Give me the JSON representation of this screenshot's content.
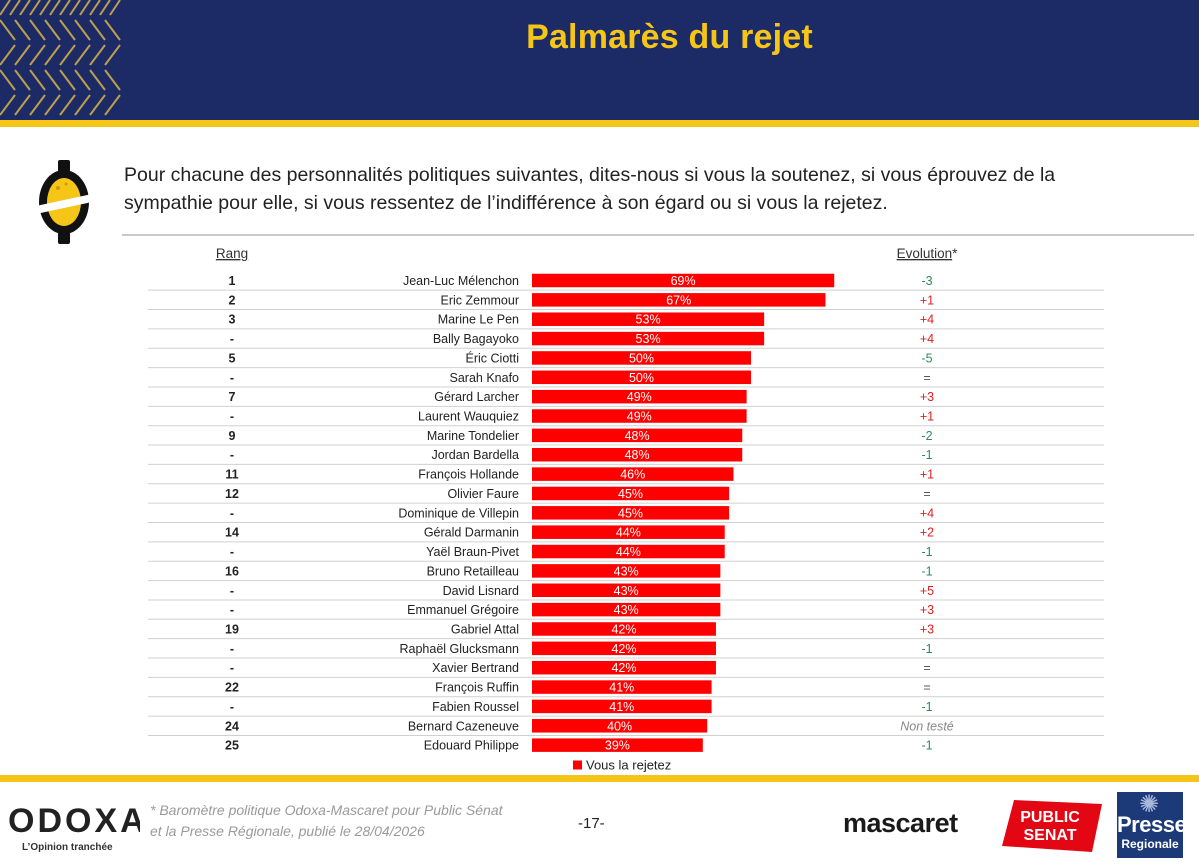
{
  "header": {
    "title": "Palmarès du rejet"
  },
  "question": "Pour chacune des personnalités politiques suivantes, dites-nous si vous la soutenez, si vous éprouvez de la sympathie pour elle, si vous ressentez de l’indifférence à son égard ou si vous la rejetez.",
  "colors": {
    "bar": "#ff0000",
    "header_bg": "#1c2a66",
    "accent": "#f5c518",
    "evolution_up": "#e02020",
    "evolution_down": "#2e8b57",
    "evolution_neutral": "#555555",
    "evolution_untested": "#888888"
  },
  "chart_data": {
    "type": "bar",
    "orientation": "horizontal",
    "rank_header": "Rang",
    "evolution_header": "Evolution",
    "evolution_header_mark": "*",
    "series": [
      {
        "name": "Vous la rejetez"
      }
    ],
    "xlim": [
      0,
      100
    ],
    "unit": "%",
    "grid": false,
    "legend_position": "bottom",
    "rows": [
      {
        "rank": "1",
        "name": "Jean-Luc Mélenchon",
        "value": 69,
        "label": "69%",
        "evolution": "-3"
      },
      {
        "rank": "2",
        "name": "Eric Zemmour",
        "value": 67,
        "label": "67%",
        "evolution": "+1"
      },
      {
        "rank": "3",
        "name": "Marine Le Pen",
        "value": 53,
        "label": "53%",
        "evolution": "+4"
      },
      {
        "rank": "-",
        "name": "Bally Bagayoko",
        "value": 53,
        "label": "53%",
        "evolution": "+4"
      },
      {
        "rank": "5",
        "name": "Éric Ciotti",
        "value": 50,
        "label": "50%",
        "evolution": "-5"
      },
      {
        "rank": "-",
        "name": "Sarah Knafo",
        "value": 50,
        "label": "50%",
        "evolution": "="
      },
      {
        "rank": "7",
        "name": "Gérard Larcher",
        "value": 49,
        "label": "49%",
        "evolution": "+3"
      },
      {
        "rank": "-",
        "name": "Laurent Wauquiez",
        "value": 49,
        "label": "49%",
        "evolution": "+1"
      },
      {
        "rank": "9",
        "name": "Marine Tondelier",
        "value": 48,
        "label": "48%",
        "evolution": "-2"
      },
      {
        "rank": "-",
        "name": "Jordan Bardella",
        "value": 48,
        "label": "48%",
        "evolution": "-1"
      },
      {
        "rank": "11",
        "name": "François Hollande",
        "value": 46,
        "label": "46%",
        "evolution": "+1"
      },
      {
        "rank": "12",
        "name": "Olivier Faure",
        "value": 45,
        "label": "45%",
        "evolution": "="
      },
      {
        "rank": "-",
        "name": "Dominique de Villepin",
        "value": 45,
        "label": "45%",
        "evolution": "+4"
      },
      {
        "rank": "14",
        "name": "Gérald Darmanin",
        "value": 44,
        "label": "44%",
        "evolution": "+2"
      },
      {
        "rank": "-",
        "name": "Yaël Braun-Pivet",
        "value": 44,
        "label": "44%",
        "evolution": "-1"
      },
      {
        "rank": "16",
        "name": "Bruno Retailleau",
        "value": 43,
        "label": "43%",
        "evolution": "-1"
      },
      {
        "rank": "-",
        "name": "David Lisnard",
        "value": 43,
        "label": "43%",
        "evolution": "+5"
      },
      {
        "rank": "-",
        "name": "Emmanuel Grégoire",
        "value": 43,
        "label": "43%",
        "evolution": "+3"
      },
      {
        "rank": "19",
        "name": "Gabriel Attal",
        "value": 42,
        "label": "42%",
        "evolution": "+3"
      },
      {
        "rank": "-",
        "name": "Raphaël Glucksmann",
        "value": 42,
        "label": "42%",
        "evolution": "-1"
      },
      {
        "rank": "-",
        "name": "Xavier Bertrand",
        "value": 42,
        "label": "42%",
        "evolution": "="
      },
      {
        "rank": "22",
        "name": "François Ruffin",
        "value": 41,
        "label": "41%",
        "evolution": "="
      },
      {
        "rank": "-",
        "name": "Fabien Roussel",
        "value": 41,
        "label": "41%",
        "evolution": "-1"
      },
      {
        "rank": "24",
        "name": "Bernard Cazeneuve",
        "value": 40,
        "label": "40%",
        "evolution": "Non testé"
      },
      {
        "rank": "25",
        "name": "Edouard Philippe",
        "value": 39,
        "label": "39%",
        "evolution": "-1"
      }
    ]
  },
  "footer": {
    "brand": "ODOXA",
    "tagline": "L’Opinion tranchée",
    "source_note": "* Baromètre politique Odoxa-Mascaret pour Public Sénat\n et la Presse Régionale, publié le 28/04/2026",
    "page_number": "-17-",
    "partner_1": "mascaret",
    "partner_2_line1": "PUBLIC",
    "partner_2_line2": "SENAT",
    "partner_3_line1": "Presse",
    "partner_3_line2": "Regionale"
  }
}
